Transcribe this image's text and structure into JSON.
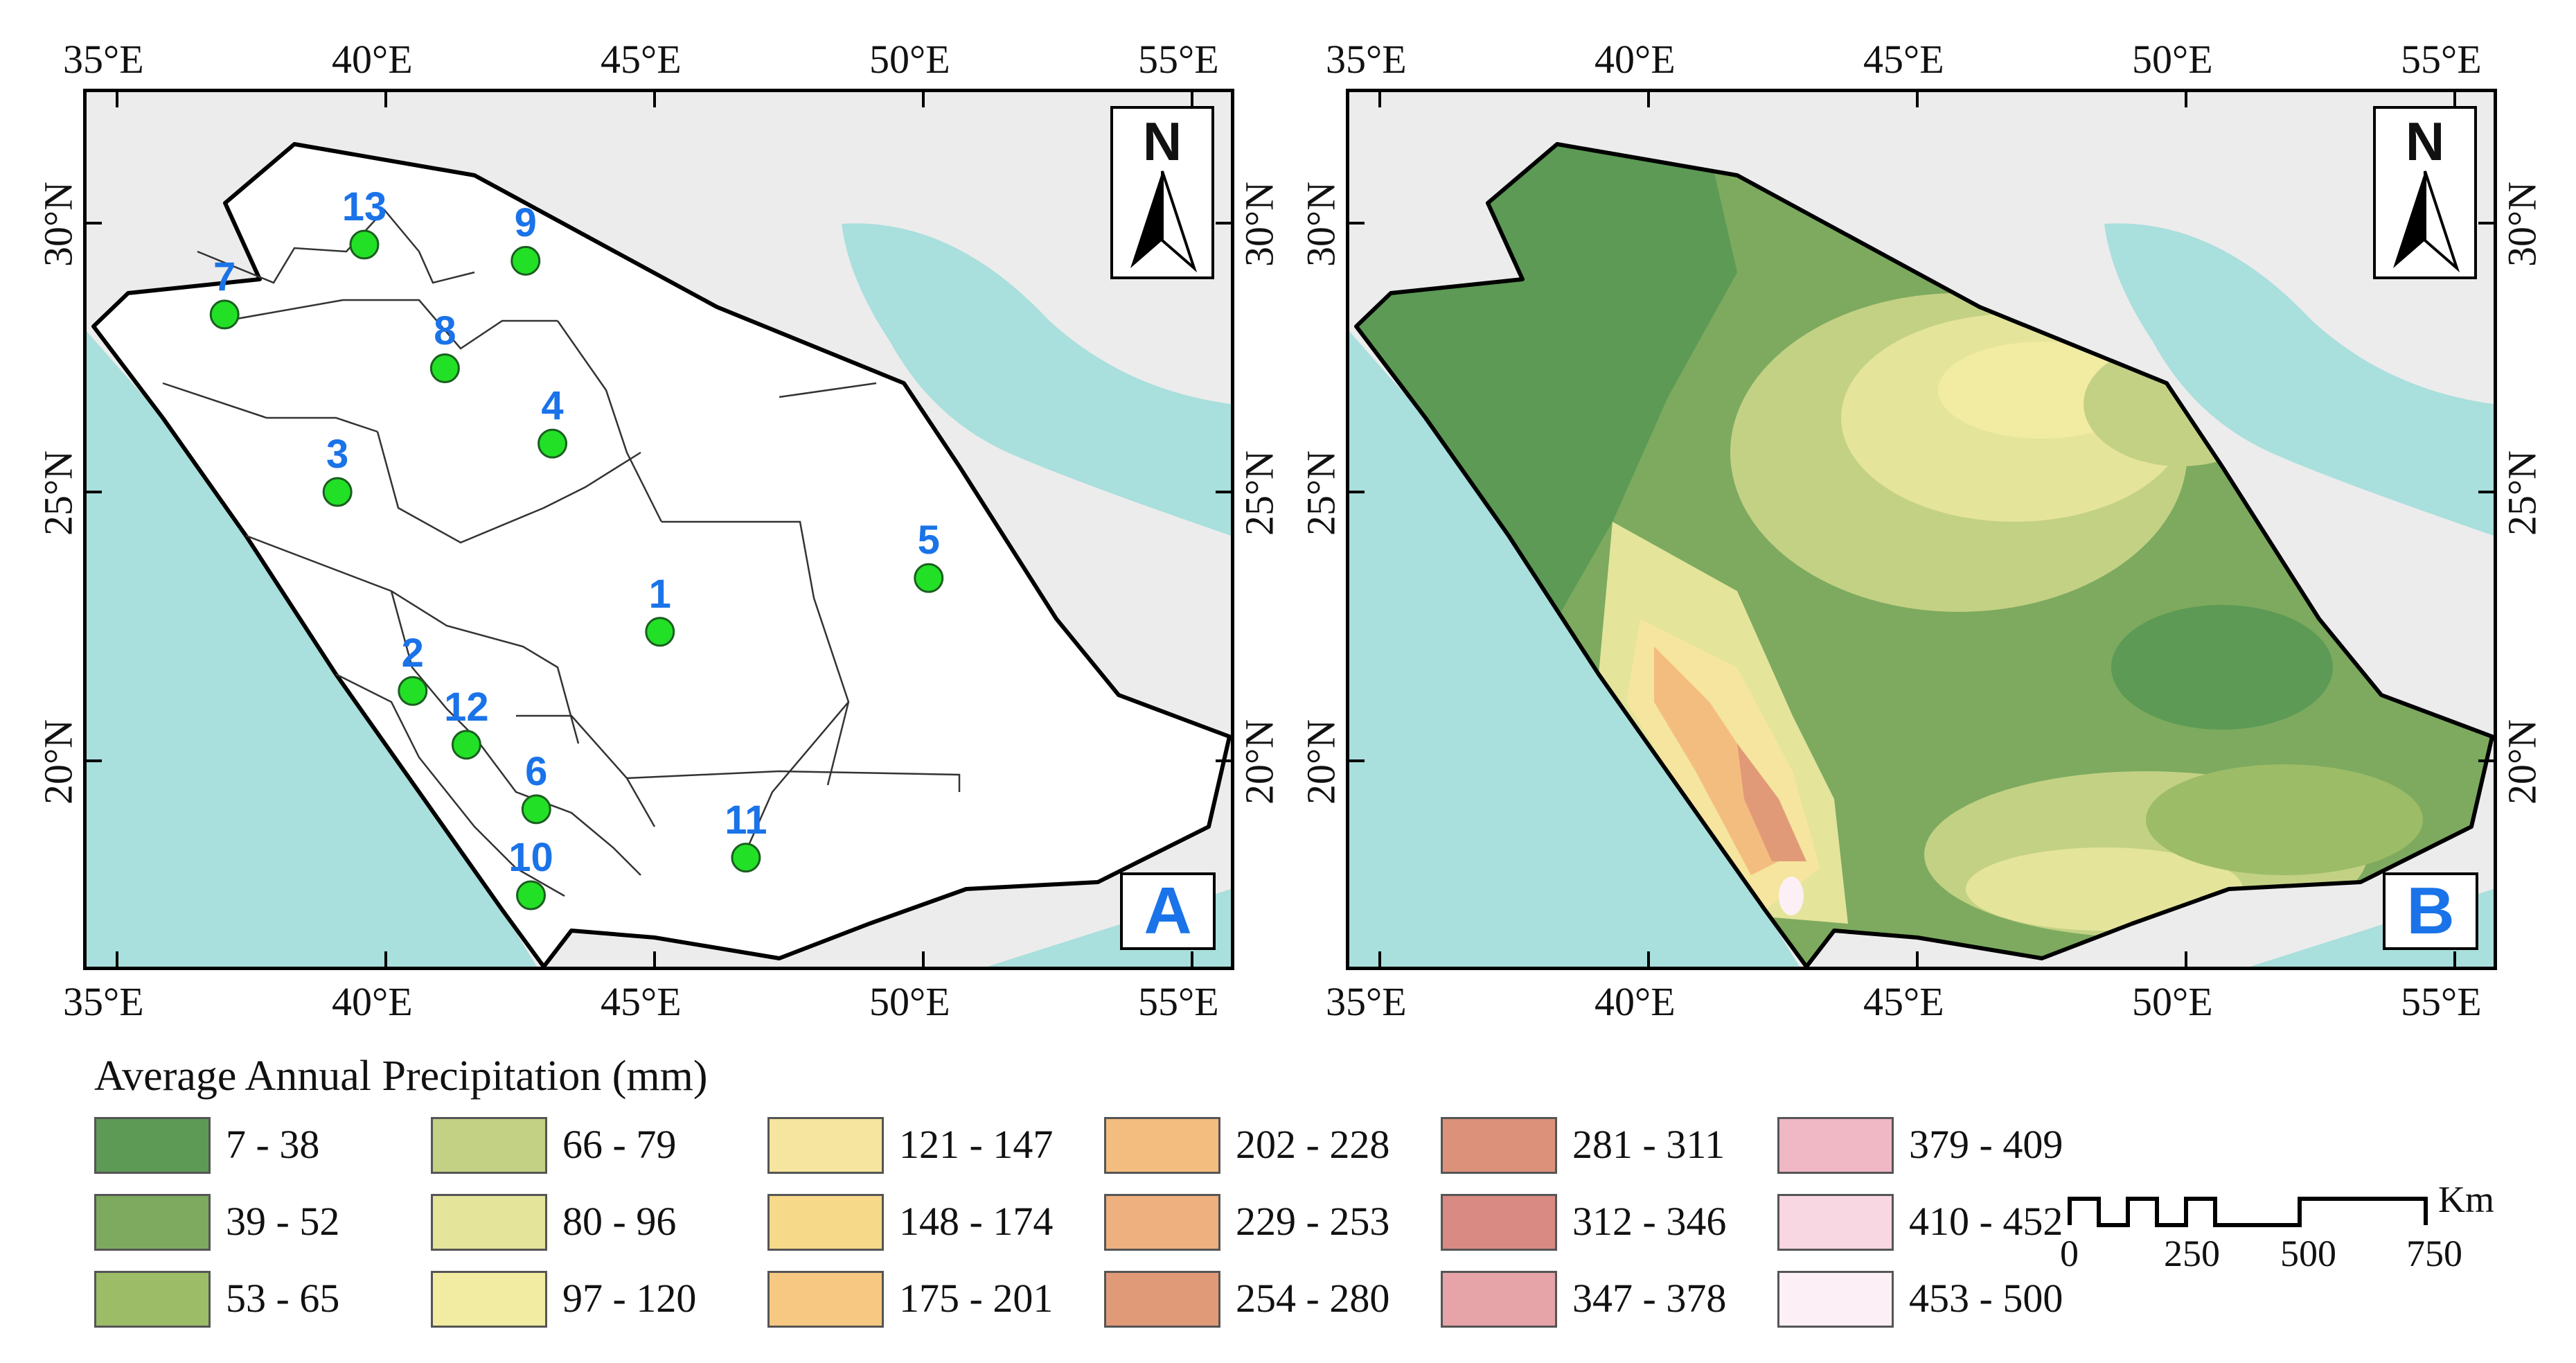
{
  "lon_ticks": [
    "35°E",
    "40°E",
    "45°E",
    "50°E",
    "55°E"
  ],
  "lat_ticks": [
    "30°N",
    "25°N",
    "20°N"
  ],
  "panels": {
    "a": {
      "letter": "A",
      "north": "N"
    },
    "b": {
      "letter": "B",
      "north": "N"
    }
  },
  "regions": [
    {
      "label": "1",
      "lon": 45.1,
      "lat": 22.4
    },
    {
      "label": "2",
      "lon": 40.5,
      "lat": 21.3
    },
    {
      "label": "3",
      "lon": 39.1,
      "lat": 25.0
    },
    {
      "label": "4",
      "lon": 43.1,
      "lat": 25.9
    },
    {
      "label": "5",
      "lon": 50.1,
      "lat": 23.4
    },
    {
      "label": "6",
      "lon": 42.8,
      "lat": 19.1
    },
    {
      "label": "7",
      "lon": 37.0,
      "lat": 28.3
    },
    {
      "label": "8",
      "lon": 41.1,
      "lat": 27.3
    },
    {
      "label": "9",
      "lon": 42.6,
      "lat": 29.3
    },
    {
      "label": "10",
      "lon": 42.7,
      "lat": 17.5
    },
    {
      "label": "11",
      "lon": 46.7,
      "lat": 18.2
    },
    {
      "label": "12",
      "lon": 41.5,
      "lat": 20.3
    },
    {
      "label": "13",
      "lon": 39.6,
      "lat": 29.6
    }
  ],
  "legend": {
    "title": "Average Annual Precipitation (mm)",
    "classes": [
      {
        "label": "7 - 38",
        "color": "#5c9a55"
      },
      {
        "label": "39 - 52",
        "color": "#7daa5e"
      },
      {
        "label": "53 - 65",
        "color": "#9cbc68"
      },
      {
        "label": "66 - 79",
        "color": "#c3d184"
      },
      {
        "label": "80 - 96",
        "color": "#e4e49b"
      },
      {
        "label": "97 - 120",
        "color": "#f2eca2"
      },
      {
        "label": "121 - 147",
        "color": "#f5e59e"
      },
      {
        "label": "148 - 174",
        "color": "#f7d98a"
      },
      {
        "label": "175 - 201",
        "color": "#f6c882"
      },
      {
        "label": "202 - 228",
        "color": "#f4bd80"
      },
      {
        "label": "229 - 253",
        "color": "#eeb07e"
      },
      {
        "label": "254 - 280",
        "color": "#e19a78"
      },
      {
        "label": "281 - 311",
        "color": "#dc927a"
      },
      {
        "label": "312 - 346",
        "color": "#d98a82"
      },
      {
        "label": "347 - 378",
        "color": "#e6a3a8"
      },
      {
        "label": "379 - 409",
        "color": "#f0b7c4"
      },
      {
        "label": "410 - 452",
        "color": "#f8d6e2"
      },
      {
        "label": "453 - 500",
        "color": "#fcf0f6"
      }
    ]
  },
  "scale": {
    "unit": "Km",
    "labels": [
      "0",
      "250",
      "500",
      "750"
    ]
  },
  "colors": {
    "sea": "#a9dfdc",
    "land_outside": "#ececec",
    "region_marker": "#22e026",
    "label_blue": "#1a73e8"
  }
}
